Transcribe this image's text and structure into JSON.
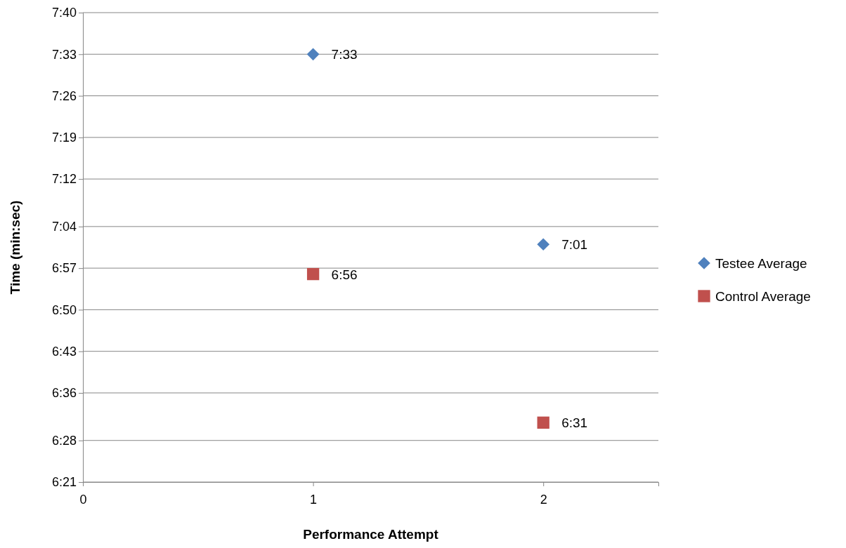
{
  "chart_data": {
    "type": "scatter",
    "xlabel": "Performance Attempt",
    "ylabel": "Time (min:sec)",
    "x": [
      1,
      2
    ],
    "xlim": [
      0,
      2.5
    ],
    "xticks": [
      0,
      1,
      2
    ],
    "ylim": [
      381,
      460
    ],
    "yticks": [
      {
        "value": 381,
        "label": "6:21"
      },
      {
        "value": 388,
        "label": "6:28"
      },
      {
        "value": 396,
        "label": "6:36"
      },
      {
        "value": 403,
        "label": "6:43"
      },
      {
        "value": 410,
        "label": "6:50"
      },
      {
        "value": 417,
        "label": "6:57"
      },
      {
        "value": 424,
        "label": "7:04"
      },
      {
        "value": 432,
        "label": "7:12"
      },
      {
        "value": 439,
        "label": "7:19"
      },
      {
        "value": 446,
        "label": "7:26"
      },
      {
        "value": 453,
        "label": "7:33"
      },
      {
        "value": 460,
        "label": "7:40"
      }
    ],
    "grid": "y",
    "legend": "right",
    "series": [
      {
        "name": "Testee Average",
        "color": "#4f81bd",
        "marker": "diamond",
        "values": [
          453,
          421
        ],
        "value_labels": [
          "7:33",
          "7:01"
        ]
      },
      {
        "name": "Control Average",
        "color": "#c0504d",
        "marker": "square",
        "values": [
          416,
          391
        ],
        "value_labels": [
          "6:56",
          "6:31"
        ]
      }
    ]
  }
}
